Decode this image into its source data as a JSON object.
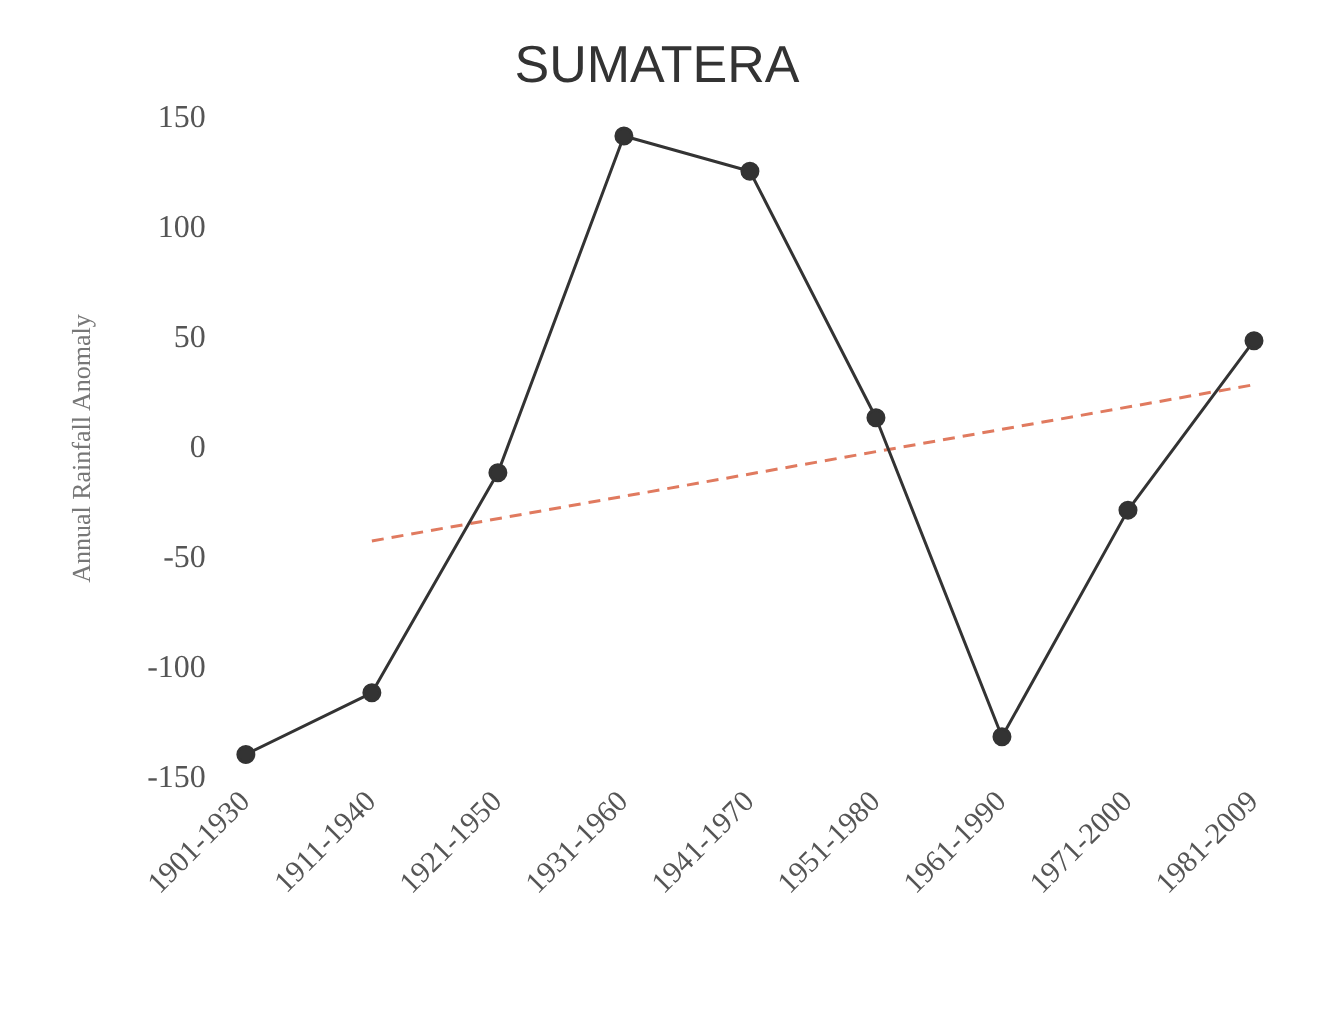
{
  "chart_data": {
    "type": "line",
    "title": "SUMATERA",
    "ylabel": "Annual Rainfall Anomaly",
    "categories": [
      "1901-1930",
      "1911-1940",
      "1921-1950",
      "1931-1960",
      "1941-1970",
      "1951-1980",
      "1961-1990",
      "1971-2000",
      "1981-2009"
    ],
    "series": [
      {
        "color": "#333333",
        "values": [
          -139,
          -111,
          -11,
          142,
          126,
          14,
          -131,
          -28,
          49
        ],
        "marker": "circle",
        "line_style": "solid"
      },
      {
        "type": "line",
        "color": "#e07a5f",
        "values": [
          null,
          -42,
          null,
          null,
          null,
          null,
          null,
          null,
          29
        ],
        "marker": "none",
        "line_style": "dashed"
      }
    ],
    "ylim": [
      -150,
      150
    ],
    "yticks": [
      -150,
      -100,
      -50,
      0,
      50,
      100,
      150
    ],
    "grid": false,
    "legend": false
  }
}
